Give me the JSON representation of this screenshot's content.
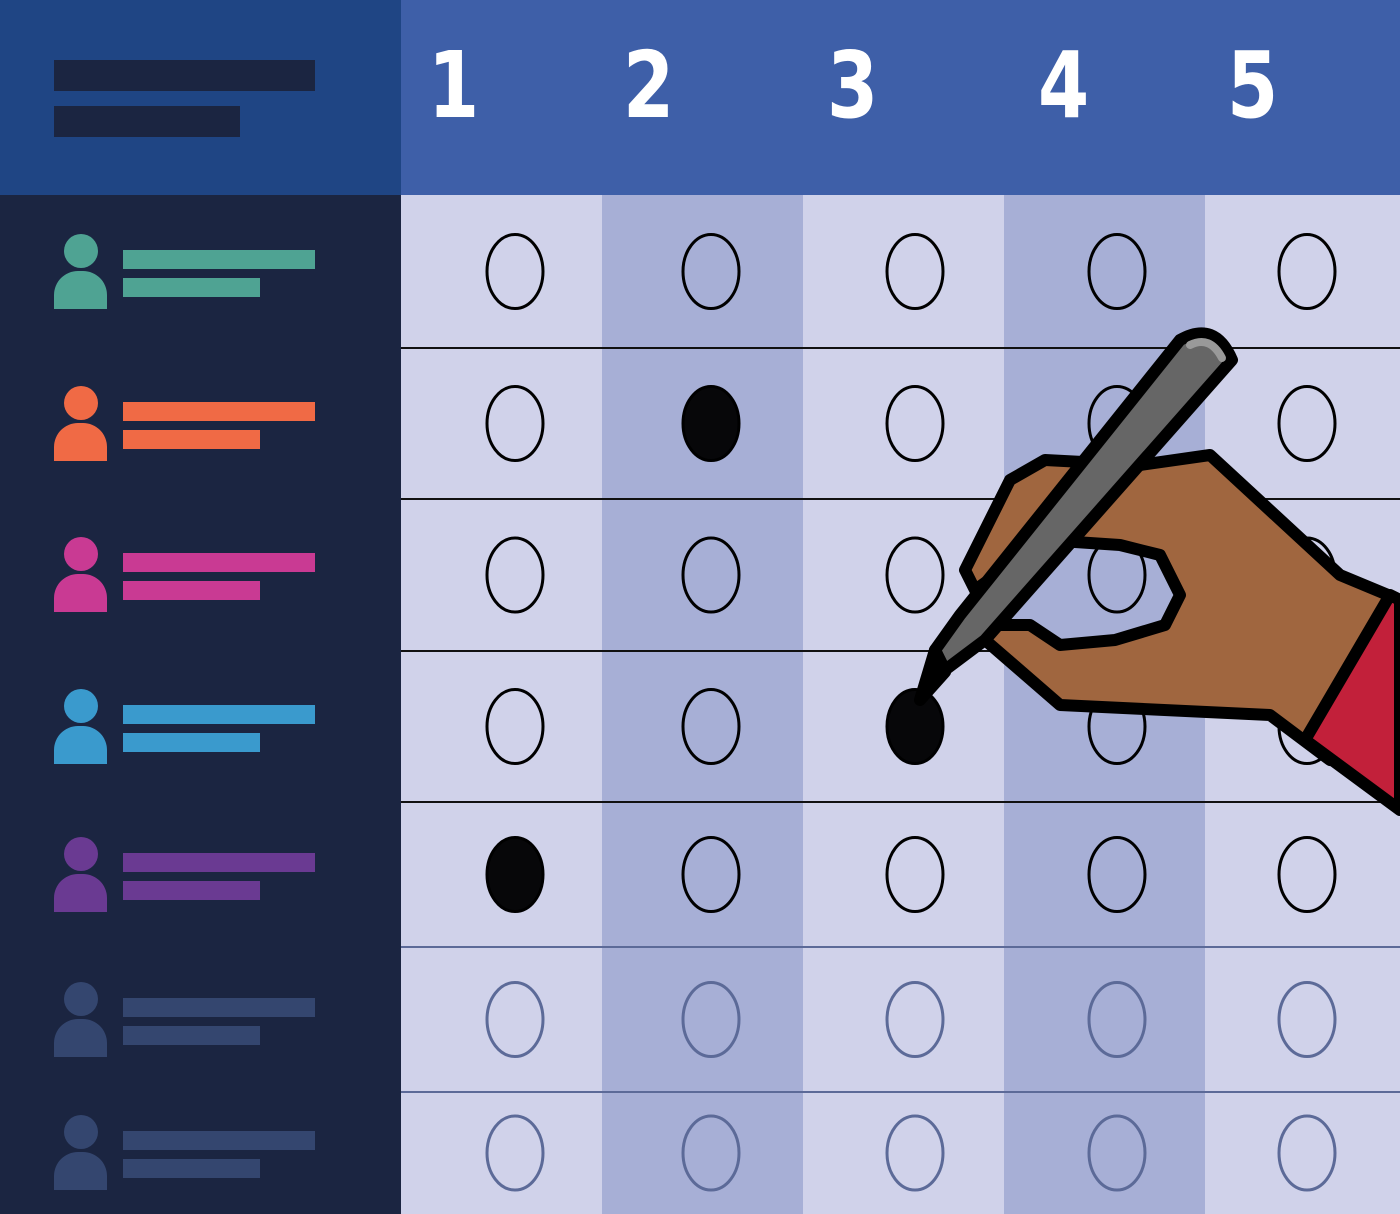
{
  "header": {
    "scale_labels": [
      "1",
      "2",
      "3",
      "4",
      "5"
    ],
    "colors": {
      "left": "#1f4584",
      "right": "#3e5fa8",
      "placeholder_bar": "#1b2541"
    }
  },
  "rows": [
    {
      "color": "#4fa393",
      "selected": null,
      "faded": false
    },
    {
      "color": "#f06a45",
      "selected": 2,
      "faded": false
    },
    {
      "color": "#c93a93",
      "selected": null,
      "faded": false
    },
    {
      "color": "#3a9acd",
      "selected": 3,
      "faded": false
    },
    {
      "color": "#6a3a92",
      "selected": 1,
      "faded": false
    },
    {
      "color": "#34466f",
      "selected": null,
      "faded": true
    },
    {
      "color": "#34466f",
      "selected": null,
      "faded": true
    }
  ],
  "grid_colors": {
    "light": "#d0d2ea",
    "dark": "#a7afd6",
    "bubble": "#000000",
    "faded_bubble": "#5c6a98"
  },
  "illustration": {
    "hand_color": "#a0663f",
    "sleeve_color": "#c2203a",
    "pen_color": "#666666"
  }
}
